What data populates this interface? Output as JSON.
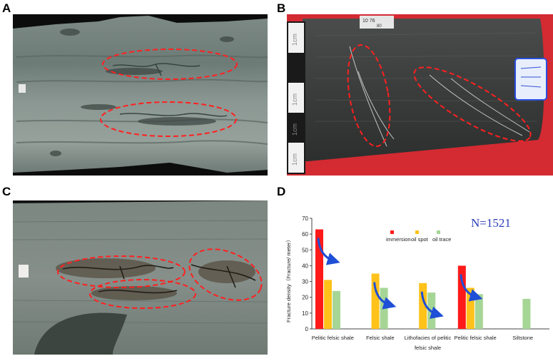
{
  "panels": {
    "a": {
      "label": "A"
    },
    "b": {
      "label": "B"
    },
    "c": {
      "label": "C"
    },
    "d": {
      "label": "D"
    }
  },
  "photo_b": {
    "scale_labels": [
      "1cm",
      "1cm",
      "1cm",
      "1cm"
    ],
    "sample_tag": "10  76",
    "sample_tag_sub": "80"
  },
  "colors": {
    "ellipse": "#ff2020",
    "arrow": "#1f4fd6",
    "n_label": "#2b3fb8"
  },
  "chart_data": {
    "type": "bar",
    "annotation": "N=1521",
    "ylabel": "Fracture density（Fracture/ meter）",
    "ylim": [
      0,
      70
    ],
    "yticks": [
      0,
      10,
      20,
      30,
      40,
      50,
      60,
      70
    ],
    "grid": false,
    "legend_position": "top-center",
    "categories": [
      [
        "Pelitic felsic shale"
      ],
      [
        "Felsic shale"
      ],
      [
        "Lithofacies of pelitic",
        "felsic shale"
      ],
      [
        "Pelitic felsic shale"
      ],
      [
        "Siltstone"
      ]
    ],
    "series": [
      {
        "name": "immersion",
        "color": "#ff1a1a",
        "values": [
          63,
          null,
          null,
          40,
          null
        ]
      },
      {
        "name": "oil spot",
        "color": "#ffc21a",
        "values": [
          31,
          35,
          29,
          26,
          null
        ]
      },
      {
        "name": "oil trace",
        "color": "#a6d696",
        "values": [
          24,
          26,
          23,
          22,
          19
        ]
      }
    ],
    "arrows": [
      "decreasing",
      "decreasing",
      "decreasing",
      "decreasing"
    ]
  }
}
